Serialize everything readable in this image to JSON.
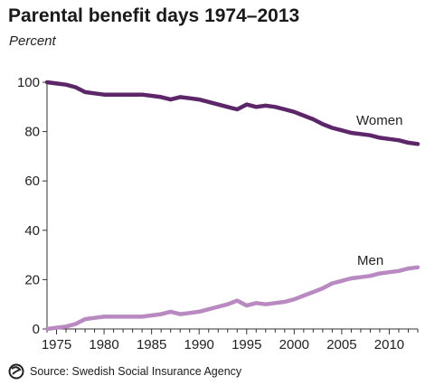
{
  "chart_data": {
    "type": "line",
    "title": "Parental benefit days 1974–2013",
    "subtitle": "Percent",
    "xlabel": "",
    "ylabel": "",
    "xlim": [
      1974,
      2013
    ],
    "ylim": [
      0,
      100
    ],
    "x_ticks": [
      1975,
      1980,
      1985,
      1990,
      1995,
      2000,
      2005,
      2010
    ],
    "y_ticks": [
      0,
      20,
      40,
      60,
      80,
      100
    ],
    "grid": false,
    "x": [
      1974,
      1975,
      1976,
      1977,
      1978,
      1979,
      1980,
      1981,
      1982,
      1983,
      1984,
      1985,
      1986,
      1987,
      1988,
      1989,
      1990,
      1991,
      1992,
      1993,
      1994,
      1995,
      1996,
      1997,
      1998,
      1999,
      2000,
      2001,
      2002,
      2003,
      2004,
      2005,
      2006,
      2007,
      2008,
      2009,
      2010,
      2011,
      2012,
      2013
    ],
    "series": [
      {
        "name": "Women",
        "color": "#5c2669",
        "values": [
          100,
          99.5,
          99,
          98,
          96,
          95.5,
          95,
          95,
          95,
          95,
          95,
          94.5,
          94,
          93,
          94,
          93.5,
          93,
          92,
          91,
          90,
          89,
          91,
          90,
          90.5,
          90,
          89,
          88,
          86.5,
          85,
          83,
          81.5,
          80.5,
          79.5,
          79,
          78.5,
          77.5,
          77,
          76.5,
          75.5,
          75
        ]
      },
      {
        "name": "Men",
        "color": "#b98ac2",
        "values": [
          0,
          0.5,
          1,
          2,
          4,
          4.5,
          5,
          5,
          5,
          5,
          5,
          5.5,
          6,
          7,
          6,
          6.5,
          7,
          8,
          9,
          10,
          11.5,
          9.5,
          10.5,
          10,
          10.5,
          11,
          12,
          13.5,
          15,
          16.5,
          18.5,
          19.5,
          20.5,
          21,
          21.5,
          22.5,
          23,
          23.5,
          24.5,
          25
        ]
      }
    ],
    "annotations": [
      "Women",
      "Men"
    ]
  },
  "footer": {
    "logo_icon": "agency-swirl-logo-icon",
    "source": "Source: Swedish Social Insurance Agency"
  }
}
